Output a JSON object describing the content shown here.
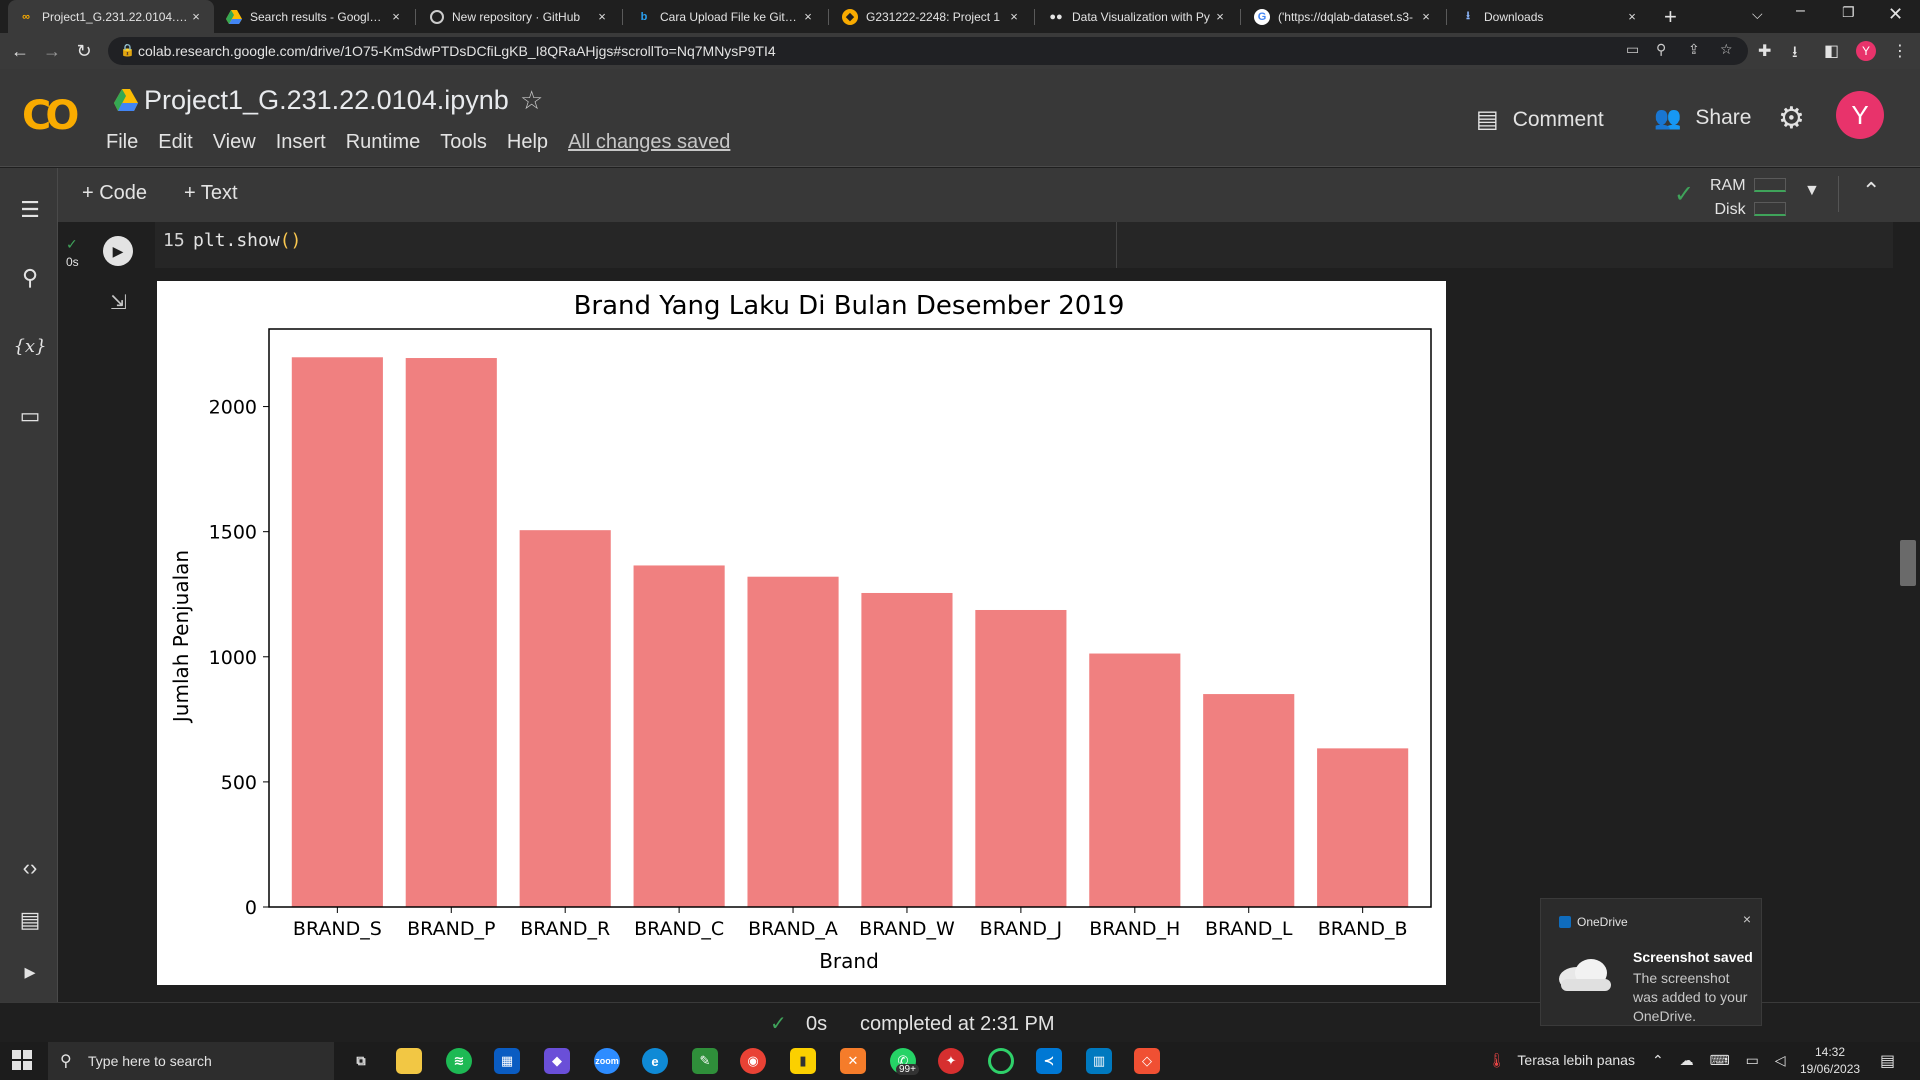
{
  "browser": {
    "tabs": [
      {
        "label": "Project1_G.231.22.0104.ipy",
        "icon": "colab-icon",
        "active": true
      },
      {
        "label": "Search results - Google Dr",
        "icon": "drive-icon"
      },
      {
        "label": "New repository · GitHub",
        "icon": "github-icon"
      },
      {
        "label": "Cara Upload File ke GitHu",
        "icon": "bing-icon"
      },
      {
        "label": "G231222-2248: Project 1",
        "icon": "moodle-icon"
      },
      {
        "label": "Data Visualization with Py",
        "icon": "dqlab-icon"
      },
      {
        "label": "('https://dqlab-dataset.s3-",
        "icon": "google-icon"
      },
      {
        "label": "Downloads",
        "icon": "download-icon"
      }
    ],
    "close_glyph": "×",
    "new_tab_glyph": "+",
    "url": "colab.research.google.com/drive/1O75-KmSdwPTDsDCfiLgKB_I8QRaAHjgs#scrollTo=Nq7MNysP9TI4"
  },
  "colab": {
    "logo": "CO",
    "notebook_title": "Project1_G.231.22.0104.ipynb",
    "menu": [
      "File",
      "Edit",
      "View",
      "Insert",
      "Runtime",
      "Tools",
      "Help"
    ],
    "save_status": "All changes saved",
    "comment_label": "Comment",
    "share_label": "Share",
    "avatar_letter": "Y",
    "add_code_label": "+ Code",
    "add_text_label": "+ Text",
    "ram_label": "RAM",
    "disk_label": "Disk"
  },
  "cell": {
    "line_number": "15",
    "code_prefix": "plt.show",
    "code_parens": "()",
    "exec_time": "0s"
  },
  "chart_data": {
    "type": "bar",
    "title": "Brand Yang Laku Di Bulan Desember 2019",
    "xlabel": "Brand",
    "ylabel": "Jumlah Penjualan",
    "categories": [
      "BRAND_S",
      "BRAND_P",
      "BRAND_R",
      "BRAND_C",
      "BRAND_A",
      "BRAND_W",
      "BRAND_J",
      "BRAND_H",
      "BRAND_L",
      "BRAND_B"
    ],
    "values": [
      2197,
      2194,
      1506,
      1365,
      1320,
      1255,
      1187,
      1013,
      851,
      634
    ],
    "ylim": [
      0,
      2310
    ],
    "yticks": [
      0,
      500,
      1000,
      1500,
      2000
    ],
    "bar_color": "#f08080",
    "grid": false
  },
  "status": {
    "exec_time": "0s",
    "message": "completed at 2:31 PM"
  },
  "toast": {
    "app": "OneDrive",
    "title": "Screenshot saved",
    "body": "The screenshot was added to your OneDrive.",
    "close_glyph": "×"
  },
  "taskbar": {
    "search_placeholder": "Type here to search",
    "weather": "Terasa lebih panas",
    "time": "14:32",
    "date": "19/06/2023",
    "whatsapp_badge": "99+"
  }
}
